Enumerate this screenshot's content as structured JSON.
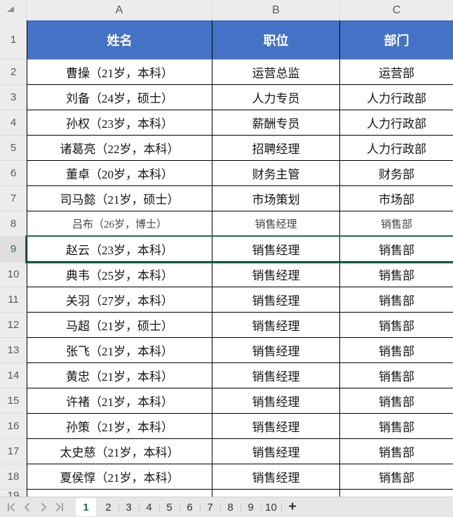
{
  "sheet": {
    "column_letters": [
      "A",
      "B",
      "C"
    ],
    "header_row": {
      "number": "1",
      "cells": [
        "姓名",
        "职位",
        "部门"
      ]
    },
    "rows": [
      {
        "number": "2",
        "name": "曹操（21岁，本科）",
        "position": "运营总监",
        "department": "运营部"
      },
      {
        "number": "3",
        "name": "刘备（24岁，硕士）",
        "position": "人力专员",
        "department": "人力行政部"
      },
      {
        "number": "4",
        "name": "孙权（23岁，本科）",
        "position": "薪酬专员",
        "department": "人力行政部"
      },
      {
        "number": "5",
        "name": "诸葛亮（22岁，本科）",
        "position": "招聘经理",
        "department": "人力行政部"
      },
      {
        "number": "6",
        "name": "董卓（20岁，本科）",
        "position": "财务主管",
        "department": "财务部"
      },
      {
        "number": "7",
        "name": "司马懿（21岁，硕士）",
        "position": "市场策划",
        "department": "市场部"
      },
      {
        "number": "8",
        "name": "吕布（26岁，博士）",
        "position": "销售经理",
        "department": "销售部"
      },
      {
        "number": "9",
        "name": "赵云（23岁，本科）",
        "position": "销售经理",
        "department": "销售部"
      },
      {
        "number": "10",
        "name": "典韦（25岁，本科）",
        "position": "销售经理",
        "department": "销售部"
      },
      {
        "number": "11",
        "name": "关羽（27岁，本科）",
        "position": "销售经理",
        "department": "销售部"
      },
      {
        "number": "12",
        "name": "马超（21岁，硕士）",
        "position": "销售经理",
        "department": "销售部"
      },
      {
        "number": "13",
        "name": "张飞（21岁，本科）",
        "position": "销售经理",
        "department": "销售部"
      },
      {
        "number": "14",
        "name": "黄忠（21岁，本科）",
        "position": "销售经理",
        "department": "销售部"
      },
      {
        "number": "15",
        "name": "许褚（21岁，本科）",
        "position": "销售经理",
        "department": "销售部"
      },
      {
        "number": "16",
        "name": "孙策（21岁，本科）",
        "position": "销售经理",
        "department": "销售部"
      },
      {
        "number": "17",
        "name": "太史慈（21岁，本科）",
        "position": "销售经理",
        "department": "销售部"
      },
      {
        "number": "18",
        "name": "夏侯惇（21岁，本科）",
        "position": "销售经理",
        "department": "销售部"
      }
    ],
    "partial_row_number": "19",
    "selected_row": "9",
    "muted_row": "8"
  },
  "tab_bar": {
    "nav_icons": [
      "first-sheet-icon",
      "previous-sheet-icon",
      "next-sheet-icon",
      "last-sheet-icon"
    ],
    "tabs": [
      "1",
      "2",
      "3",
      "4",
      "5",
      "6",
      "7",
      "8",
      "9",
      "10"
    ],
    "active_tab": "1",
    "add_sheet_label": "+"
  },
  "colors": {
    "header_fill": "#4472c4",
    "header_text": "#ffffff",
    "selection_green": "#1e7145",
    "grid_line": "#000000",
    "panel_bg": "#ececec"
  }
}
